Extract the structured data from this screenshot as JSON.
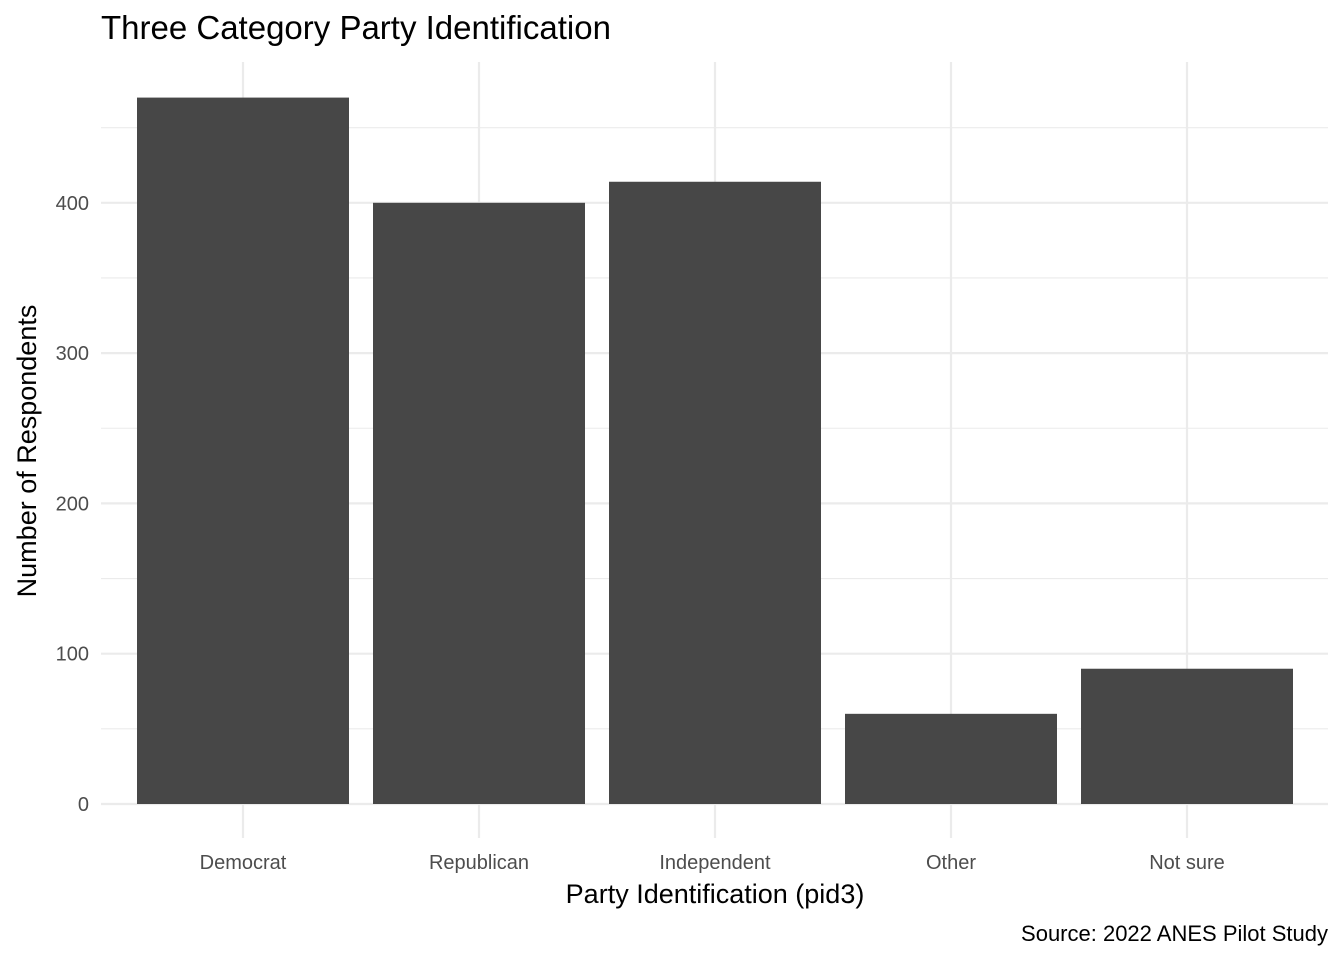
{
  "chart_data": {
    "type": "bar",
    "title": "Three Category Party Identification",
    "xlabel": "Party Identification (pid3)",
    "ylabel": "Number of Respondents",
    "caption": "Source: 2022 ANES Pilot Study",
    "categories": [
      "Democrat",
      "Republican",
      "Independent",
      "Other",
      "Not sure"
    ],
    "values": [
      470,
      400,
      414,
      60,
      90
    ],
    "ylim": [
      0,
      470
    ],
    "yticks": [
      0,
      100,
      200,
      300,
      400
    ],
    "grid": true,
    "legend": "none",
    "bar_color": "#474747",
    "grid_color": "#ebebeb"
  }
}
